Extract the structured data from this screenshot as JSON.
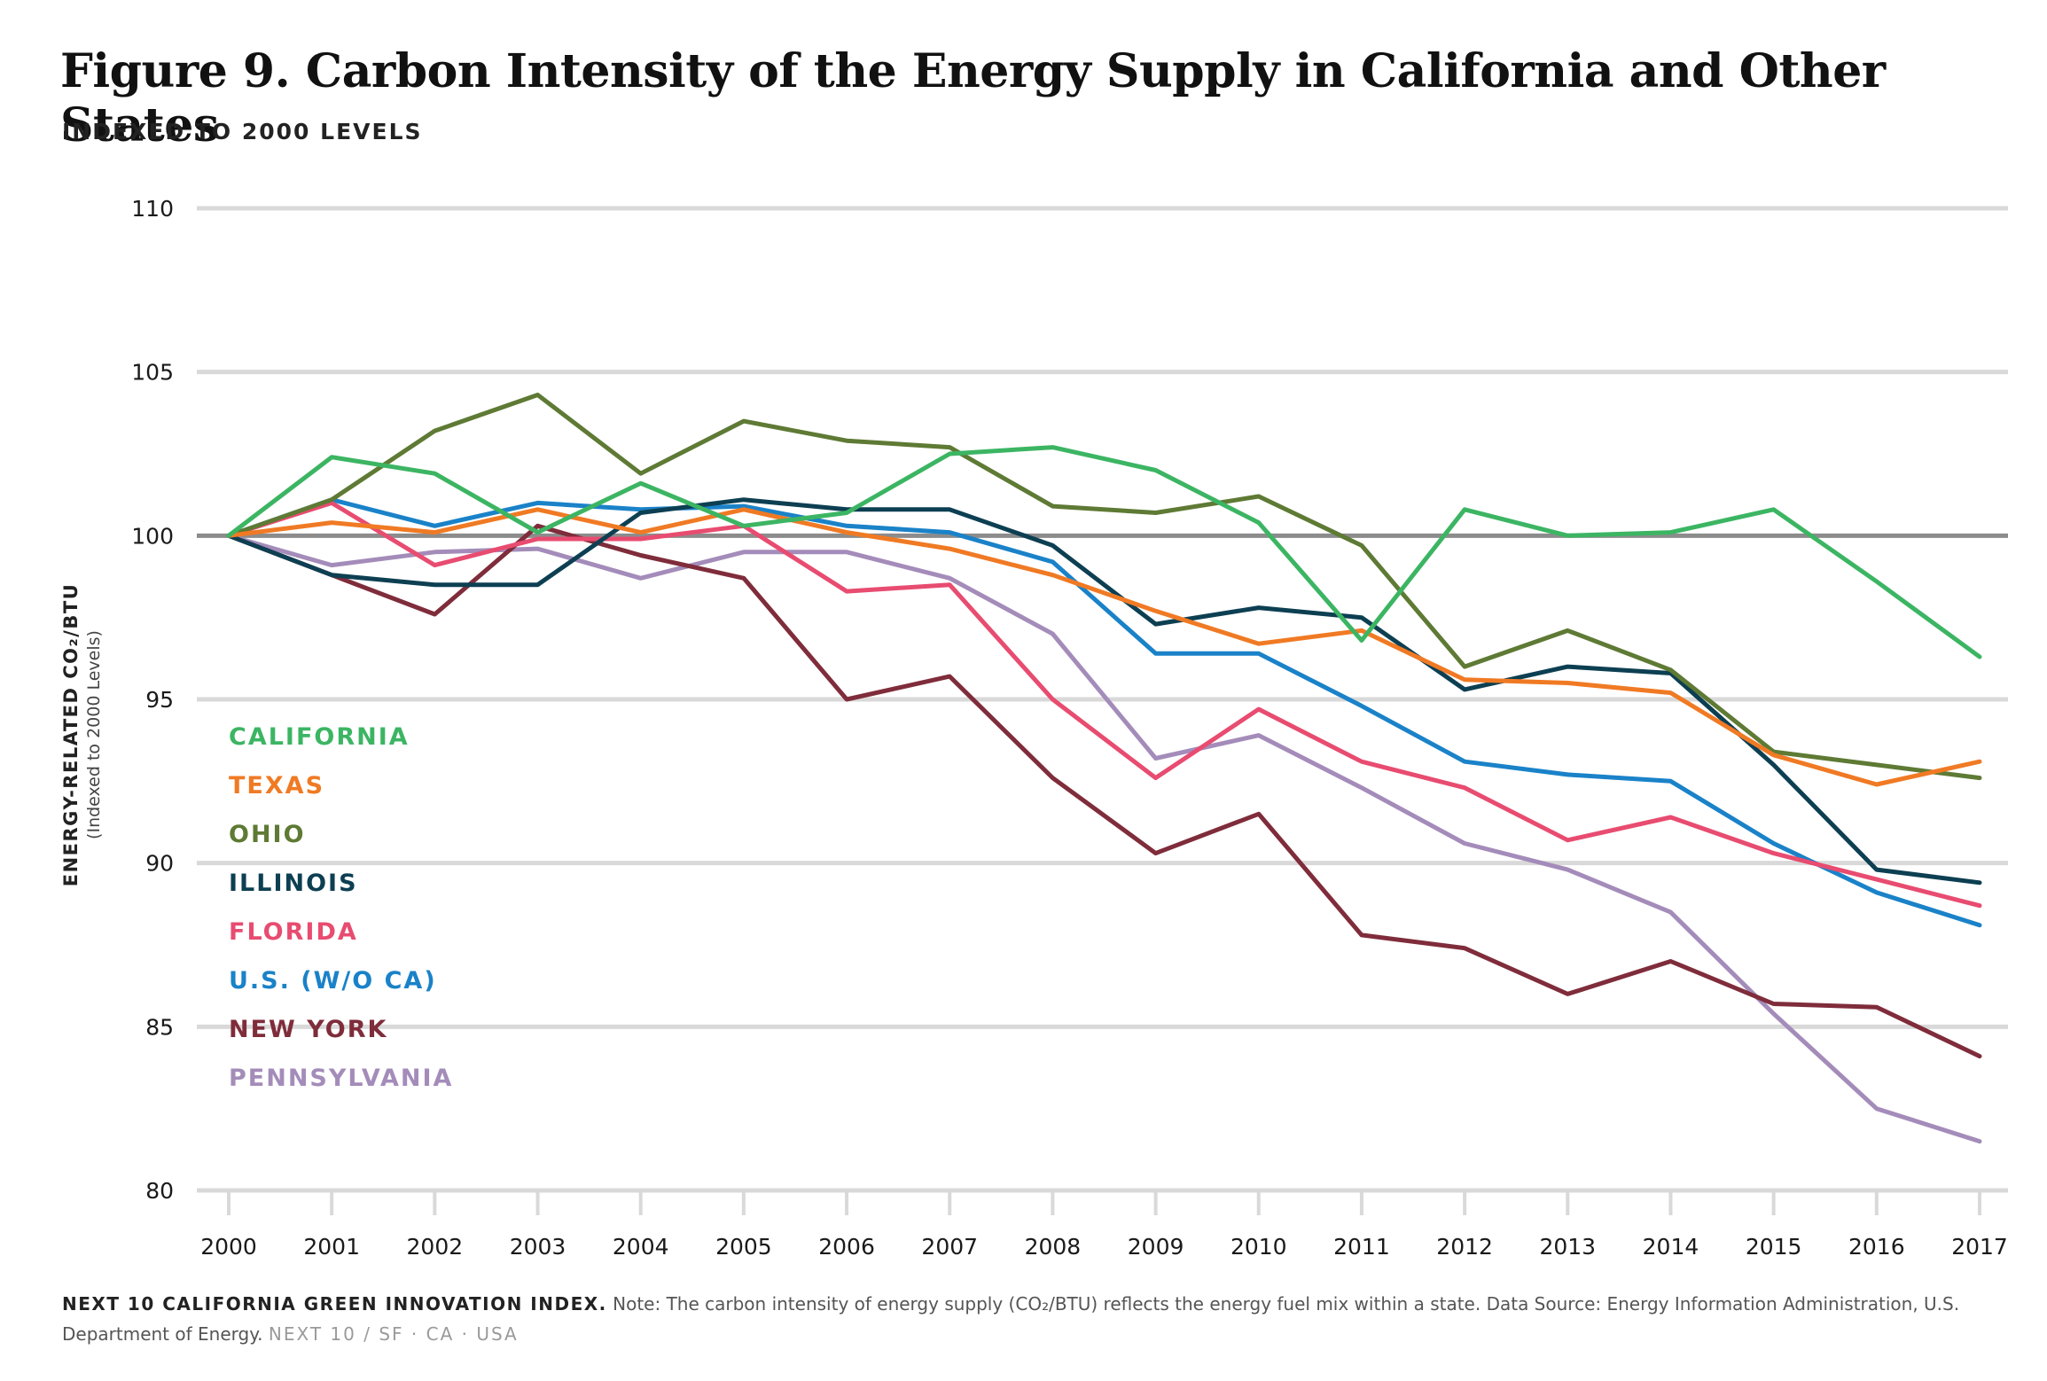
{
  "header": {
    "title": "Figure 9. Carbon Intensity of the Energy Supply in California and Other States",
    "subtitle": "INDEXED TO 2000 LEVELS"
  },
  "footer": {
    "source_label": "NEXT 10 CALIFORNIA GREEN INNOVATION INDEX.",
    "note": "Note: The carbon intensity of energy supply (CO₂/BTU) reflects the energy fuel mix within a state. Data Source: Energy Information Administration, U.S. Department of Energy.",
    "brand": "NEXT 10 / SF · CA · USA"
  },
  "colors": {
    "grid": "#d9d9d9",
    "baseline": "#8c8c8c",
    "axis_text": "#1a1a1a"
  },
  "chart_data": {
    "type": "line",
    "ylabel": "ENERGY-RELATED CO₂/BTU",
    "ylabel_sub": "(Indexed to 2000 Levels)",
    "ylim": [
      80,
      110
    ],
    "yticks": [
      80,
      85,
      90,
      95,
      100,
      105,
      110
    ],
    "baseline": 100,
    "grid": true,
    "legend_position": "left",
    "x": [
      "2000",
      "2001",
      "2002",
      "2003",
      "2004",
      "2005",
      "2006",
      "2007",
      "2008",
      "2009",
      "2010",
      "2011",
      "2012",
      "2013",
      "2014",
      "2015",
      "2016",
      "2017"
    ],
    "series": [
      {
        "name": "CALIFORNIA",
        "color": "#3cb563",
        "values": [
          100,
          102.4,
          101.9,
          100.1,
          101.6,
          100.3,
          100.7,
          102.5,
          102.7,
          102.0,
          100.4,
          96.8,
          100.8,
          100.0,
          100.1,
          100.8,
          98.6,
          96.3
        ]
      },
      {
        "name": "TEXAS",
        "color": "#f07a24",
        "values": [
          100,
          100.4,
          100.1,
          100.8,
          100.1,
          100.8,
          100.1,
          99.6,
          98.8,
          97.7,
          96.7,
          97.1,
          95.6,
          95.5,
          95.2,
          93.3,
          92.4,
          93.1
        ]
      },
      {
        "name": "OHIO",
        "color": "#5e7a34",
        "values": [
          100,
          101.1,
          103.2,
          104.3,
          101.9,
          103.5,
          102.9,
          102.7,
          100.9,
          100.7,
          101.2,
          99.7,
          96.0,
          97.1,
          95.9,
          93.4,
          93.0,
          92.6
        ]
      },
      {
        "name": "ILLINOIS",
        "color": "#0d3f52",
        "values": [
          100,
          98.8,
          98.5,
          98.5,
          100.7,
          101.1,
          100.8,
          100.8,
          99.7,
          97.3,
          97.8,
          97.5,
          95.3,
          96.0,
          95.8,
          93.0,
          89.8,
          89.4
        ]
      },
      {
        "name": "FLORIDA",
        "color": "#e84c70",
        "values": [
          100,
          101.0,
          99.1,
          99.9,
          99.9,
          100.3,
          98.3,
          98.5,
          95.0,
          92.6,
          94.7,
          93.1,
          92.3,
          90.7,
          91.4,
          90.3,
          89.5,
          88.7
        ]
      },
      {
        "name": "U.S. (W/O CA)",
        "color": "#1a82c8",
        "values": [
          100,
          101.1,
          100.3,
          101.0,
          100.8,
          100.9,
          100.3,
          100.1,
          99.2,
          96.4,
          96.4,
          94.8,
          93.1,
          92.7,
          92.5,
          90.6,
          89.1,
          88.1
        ]
      },
      {
        "name": "NEW YORK",
        "color": "#7f2c3b",
        "values": [
          100,
          98.8,
          97.6,
          100.3,
          99.4,
          98.7,
          95.0,
          95.7,
          92.6,
          90.3,
          91.5,
          87.8,
          87.4,
          86.0,
          87.0,
          85.7,
          85.6,
          84.1
        ]
      },
      {
        "name": "PENNSYLVANIA",
        "color": "#a48cba",
        "values": [
          100,
          99.1,
          99.5,
          99.6,
          98.7,
          99.5,
          99.5,
          98.7,
          97.0,
          93.2,
          93.9,
          92.3,
          90.6,
          89.8,
          88.5,
          85.4,
          82.5,
          81.5
        ]
      }
    ]
  }
}
